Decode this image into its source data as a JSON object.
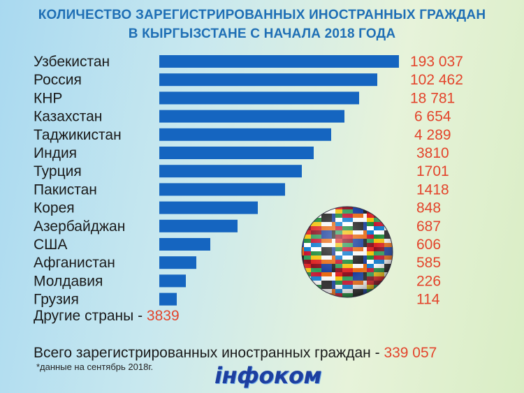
{
  "title": {
    "line1": "КОЛИЧЕСТВО ЗАРЕГИСТРИРОВАННЫХ ИНОСТРАННЫХ ГРАЖДАН",
    "line2": "В КЫРГЫЗСТАНЕ С НАЧАЛА 2018 ГОДА"
  },
  "chart_data": {
    "type": "bar",
    "orientation": "horizontal",
    "categories": [
      "Узбекистан",
      "Россия",
      "КНР",
      "Казахстан",
      "Таджикистан",
      "Индия",
      "Турция",
      "Пакистан",
      "Корея",
      "Азербайджан",
      "США",
      "Афганистан",
      "Молдавия",
      "Грузия"
    ],
    "values": [
      193037,
      102462,
      18781,
      6654,
      4289,
      3810,
      1701,
      1418,
      848,
      687,
      606,
      585,
      226,
      114
    ],
    "value_labels": [
      "193 037",
      "102 462",
      "18 781",
      "6 654",
      "4 289",
      "3810",
      "1701",
      "1418",
      "848",
      "687",
      "606",
      "585",
      "226",
      "114"
    ],
    "bar_color": "#1565c0",
    "value_color": "#e3442b"
  },
  "other": {
    "label": "Другие страны - ",
    "value": "3839"
  },
  "total": {
    "label": "Всего зарегистрированных иностранных граждан - ",
    "value": "339 057"
  },
  "note": "*данные на сентябрь 2018г.",
  "logo": "інфоком",
  "colors": {
    "title": "#1f6fb5",
    "accent": "#e3442b",
    "bar": "#1565c0"
  }
}
